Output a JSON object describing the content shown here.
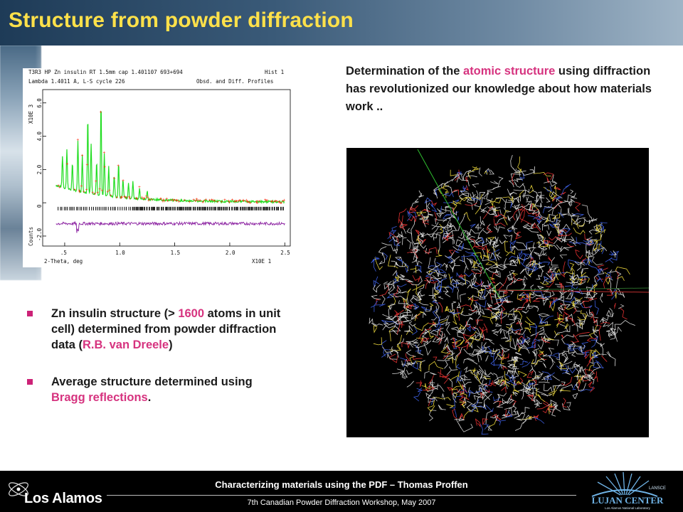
{
  "header": {
    "title": "Structure from powder diffraction"
  },
  "plot": {
    "line1_left": "T3R3 HP Zn insulin RT 1.5mm cap 1.401107 693+694",
    "line1_right": "Hist  1",
    "line2_left": "Lambda 1.4011 A, L-S cycle  226",
    "line2_right": "Obsd. and Diff. Profiles",
    "yscale_label": "X10E  3",
    "ylabel": "Counts",
    "y_ticks": [
      "6.0",
      "4.0",
      "2.0",
      "0",
      "-2.0"
    ],
    "x_ticks": [
      ".5",
      "1.0",
      "1.5",
      "2.0",
      "2.5"
    ],
    "xlabel": "2-Theta, deg",
    "xscale_label": "X10E  1",
    "colors": {
      "calc": "#22dd22",
      "obs": "#ff2200",
      "diff": "#8a1fa0",
      "ticks": "#000000"
    }
  },
  "description": {
    "pre": "Determination of the ",
    "highlight": "atomic structure",
    "post": " using diffraction has revolutionized our knowledge about how materials work .."
  },
  "bullets": [
    {
      "p1": "Zn insulin structure (> ",
      "h1": "1600",
      "p2": " atoms in unit cell) determined from powder diffraction data (",
      "h2": "R.B. van Dreele",
      "p3": ")"
    },
    {
      "p1": "Average structure determined using ",
      "h1": "Bragg reflections",
      "p2": ".",
      "h2": "",
      "p3": ""
    }
  ],
  "footer": {
    "line1": "Characterizing materials using the PDF – Thomas Proffen",
    "line2": "7th Canadian Powder Diffraction Workshop, May 2007",
    "logo_left": "Los Alamos",
    "logo_right": "LUJAN CENTER",
    "logo_right_top": "LANSCE",
    "logo_right_sub": "Los Alamos National Laboratory"
  },
  "accent_color": "#d6337f",
  "title_color": "#ffe14a"
}
